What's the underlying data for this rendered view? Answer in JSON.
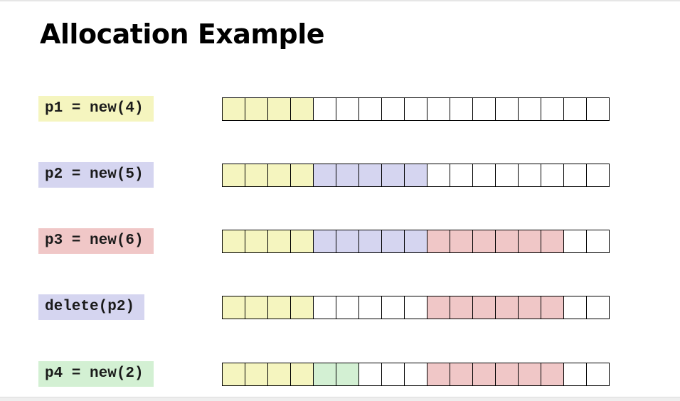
{
  "title": "Allocation Example",
  "colors": {
    "p1": "#f5f5bf",
    "p2": "#d5d5f0",
    "p3": "#f0c7c7",
    "p4": "#d3f0d3",
    "free": "#ffffff",
    "delete": "#d5d5f0"
  },
  "steps": [
    {
      "label": "p1 = new(4)",
      "label_color": "p1",
      "cells": [
        "p1",
        "p1",
        "p1",
        "p1",
        "free",
        "free",
        "free",
        "free",
        "free",
        "free",
        "free",
        "free",
        "free",
        "free",
        "free",
        "free",
        "free"
      ]
    },
    {
      "label": "p2 = new(5)",
      "label_color": "p2",
      "cells": [
        "p1",
        "p1",
        "p1",
        "p1",
        "p2",
        "p2",
        "p2",
        "p2",
        "p2",
        "free",
        "free",
        "free",
        "free",
        "free",
        "free",
        "free",
        "free"
      ]
    },
    {
      "label": "p3 = new(6)",
      "label_color": "p3",
      "cells": [
        "p1",
        "p1",
        "p1",
        "p1",
        "p2",
        "p2",
        "p2",
        "p2",
        "p2",
        "p3",
        "p3",
        "p3",
        "p3",
        "p3",
        "p3",
        "free",
        "free"
      ]
    },
    {
      "label": "delete(p2)",
      "label_color": "delete",
      "cells": [
        "p1",
        "p1",
        "p1",
        "p1",
        "free",
        "free",
        "free",
        "free",
        "free",
        "p3",
        "p3",
        "p3",
        "p3",
        "p3",
        "p3",
        "free",
        "free"
      ]
    },
    {
      "label": "p4 = new(2)",
      "label_color": "p4",
      "cells": [
        "p1",
        "p1",
        "p1",
        "p1",
        "p4",
        "p4",
        "free",
        "free",
        "free",
        "p3",
        "p3",
        "p3",
        "p3",
        "p3",
        "p3",
        "free",
        "free"
      ]
    }
  ]
}
